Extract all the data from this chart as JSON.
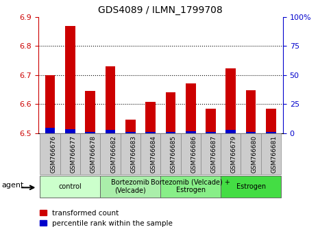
{
  "title": "GDS4089 / ILMN_1799708",
  "samples": [
    "GSM766676",
    "GSM766677",
    "GSM766678",
    "GSM766682",
    "GSM766683",
    "GSM766684",
    "GSM766685",
    "GSM766686",
    "GSM766687",
    "GSM766679",
    "GSM766680",
    "GSM766681"
  ],
  "red_values": [
    6.7,
    6.868,
    6.645,
    6.73,
    6.547,
    6.607,
    6.64,
    6.672,
    6.585,
    6.724,
    6.648,
    6.585
  ],
  "blue_values": [
    0.018,
    0.013,
    0.005,
    0.01,
    0.003,
    0.005,
    0.005,
    0.006,
    0.004,
    0.01,
    0.005,
    0.003
  ],
  "base": 6.5,
  "ylim": [
    6.5,
    6.9
  ],
  "yticks_left": [
    6.5,
    6.6,
    6.7,
    6.8,
    6.9
  ],
  "yticks_right": [
    0,
    25,
    50,
    75,
    100
  ],
  "ytick_labels_right": [
    "0",
    "25",
    "50",
    "75",
    "100%"
  ],
  "groups": [
    {
      "label": "control",
      "start": 0,
      "end": 3,
      "color": "#ccffcc"
    },
    {
      "label": "Bortezomib\n(Velcade)",
      "start": 3,
      "end": 6,
      "color": "#aaeeaa"
    },
    {
      "label": "Bortezomib (Velcade) +\nEstrogen",
      "start": 6,
      "end": 9,
      "color": "#88ee88"
    },
    {
      "label": "Estrogen",
      "start": 9,
      "end": 12,
      "color": "#44dd44"
    }
  ],
  "red_color": "#cc0000",
  "blue_color": "#0000cc",
  "left_axis_color": "#cc0000",
  "right_axis_color": "#0000cc",
  "tick_bg_color": "#cccccc",
  "bar_width": 0.5
}
